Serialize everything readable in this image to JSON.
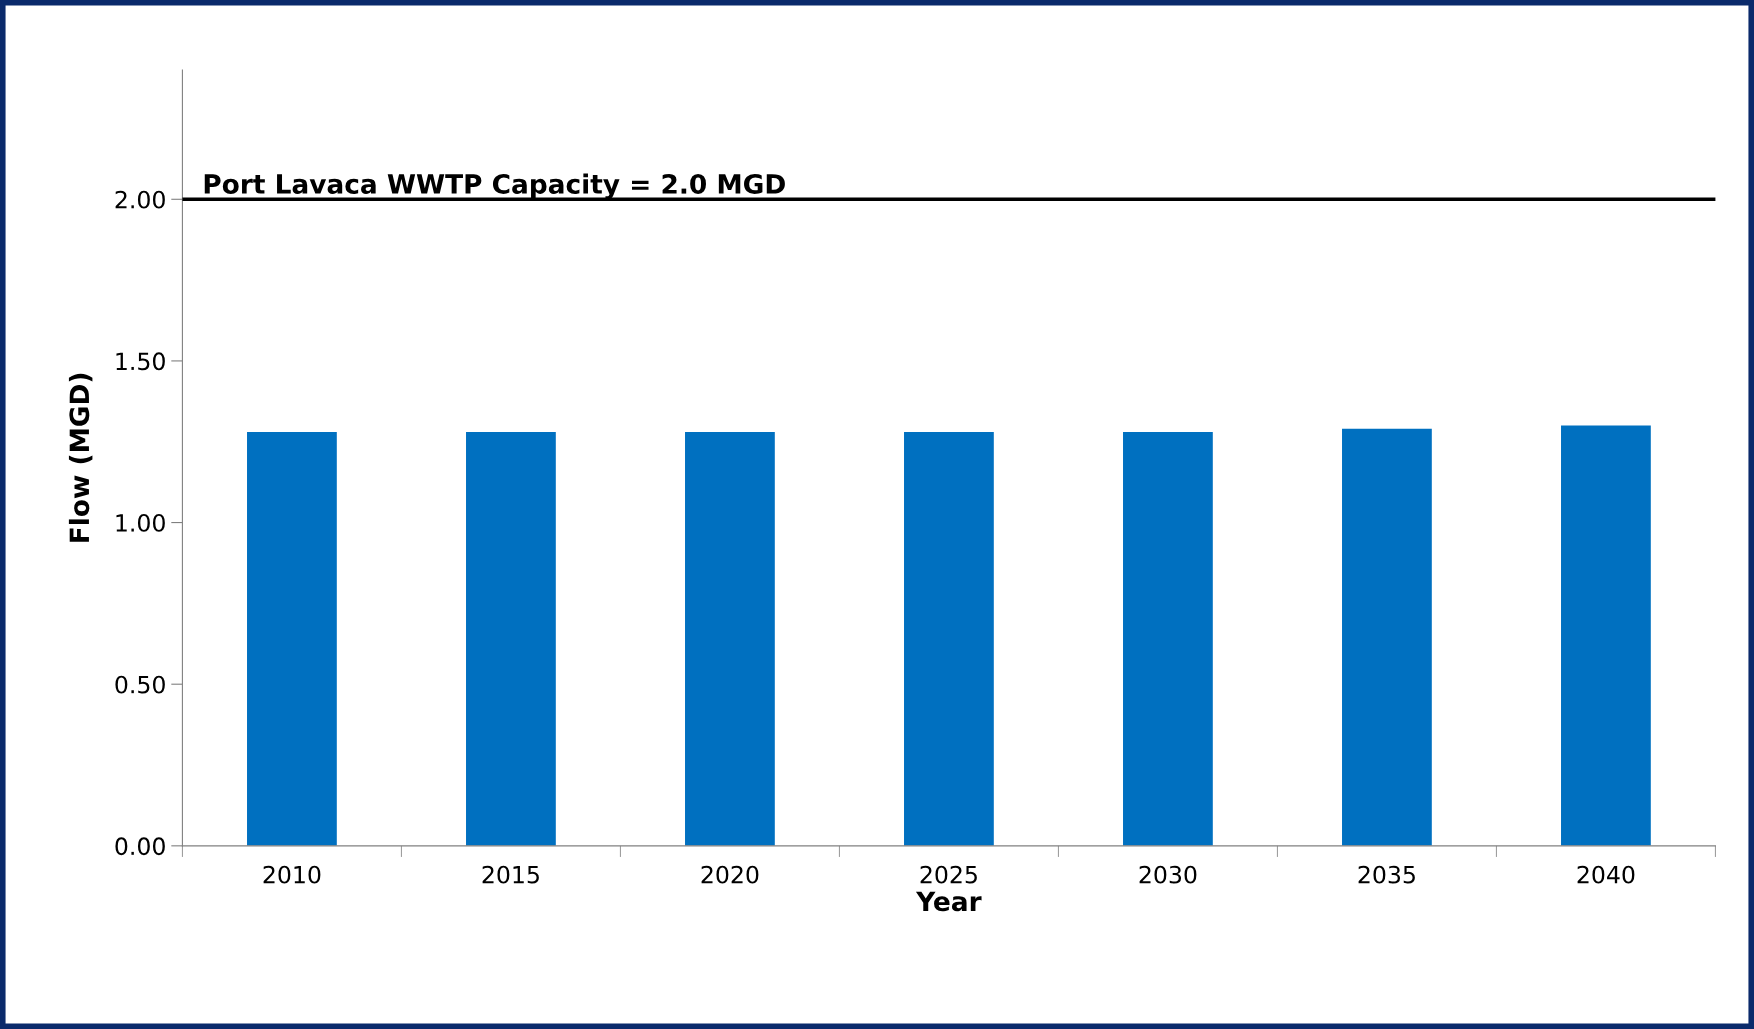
{
  "chart_data": {
    "type": "bar",
    "xlabel": "Year",
    "ylabel": "Flow (MGD)",
    "categories": [
      "2010",
      "2015",
      "2020",
      "2025",
      "2030",
      "2035",
      "2040"
    ],
    "values": [
      1.28,
      1.28,
      1.28,
      1.28,
      1.28,
      1.29,
      1.3
    ],
    "color": "#0070c0",
    "ylim": [
      0,
      2.4
    ],
    "yticks": [
      {
        "value": 0,
        "label": "0.00"
      },
      {
        "value": 0.5,
        "label": "0.50"
      },
      {
        "value": 1.0,
        "label": "1.00"
      },
      {
        "value": 1.5,
        "label": "1.50"
      },
      {
        "value": 2.0,
        "label": "2.00"
      }
    ],
    "ref_lines": [
      {
        "axis": "y",
        "value": 2.0,
        "label": "Port Lavaca WWTP Capacity = 2.0 MGD",
        "color": "#000000"
      }
    ],
    "grid": false,
    "legend": false
  }
}
